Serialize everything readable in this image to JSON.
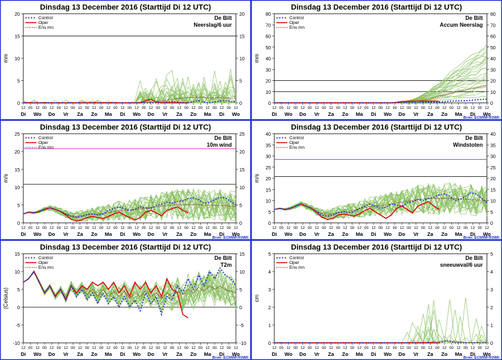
{
  "chart_data": [
    {
      "type": "line",
      "title": "Dinsdag 13 December 2016    (Starttijd Di 12 UTC)",
      "station": "De Bilt",
      "variable": "Neerslag/6 uur",
      "ylabel": "mm",
      "ylim": [
        0,
        20
      ],
      "yticks": [
        0,
        5,
        10,
        15,
        20
      ],
      "ylim_right": [
        0,
        20
      ],
      "yticks_right": [
        0,
        5,
        10,
        15,
        20
      ],
      "hlines": [
        {
          "value": 15,
          "color": "#000000"
        }
      ],
      "source": "",
      "legend": [
        "Control",
        "Oper",
        "Ens mn"
      ],
      "series": [
        {
          "name": "Control",
          "values": [
            0,
            0,
            0,
            0,
            0,
            0,
            0,
            0,
            0,
            0,
            0,
            0,
            0,
            0,
            0,
            0,
            0,
            0,
            0,
            0,
            0,
            0,
            0,
            0,
            0,
            0,
            0,
            0.2,
            0.3,
            0.2,
            0,
            0,
            0.3,
            0.5,
            0.2,
            0,
            0.2,
            0.4,
            0.5,
            0.3,
            0.2
          ]
        },
        {
          "name": "Oper",
          "values": [
            0,
            0,
            0,
            0,
            0,
            0,
            0,
            0,
            0,
            0,
            0,
            0,
            0,
            0,
            0,
            0,
            0,
            0,
            0,
            0,
            0,
            0,
            0,
            0.5,
            0.8,
            0.2,
            0,
            0,
            0,
            0,
            0,
            0
          ]
        },
        {
          "name": "Ens mn",
          "values": [
            0,
            0,
            0,
            0,
            0,
            0,
            0,
            0,
            0,
            0,
            0,
            0,
            0,
            0,
            0,
            0,
            0,
            0,
            0,
            0,
            0,
            0,
            0,
            0.1,
            0.2,
            0.3,
            0.4,
            0.6,
            0.8,
            1,
            1.1,
            1.2,
            1.2,
            1.3,
            1.2,
            1.1,
            1.1,
            1.2,
            1.1,
            1,
            1
          ]
        }
      ]
    },
    {
      "type": "line",
      "title": "Dinsdag 13 December 2016    (Starttijd Di 12 UTC)",
      "station": "De Bilt",
      "variable": "Accum Neerslag",
      "ylabel": "mm",
      "ylim": [
        0,
        80
      ],
      "yticks": [
        0,
        10,
        20,
        30,
        40,
        50,
        60,
        70,
        80
      ],
      "ylim_right": [
        0,
        80
      ],
      "yticks_right": [
        0,
        10,
        20,
        30,
        40,
        50,
        60,
        70,
        80
      ],
      "hlines": [
        {
          "value": 10,
          "color": "#000000"
        },
        {
          "value": 20,
          "color": "#000000"
        }
      ],
      "source": "Bron: ECMWF/KNMI",
      "legend": [
        "Control",
        "Oper",
        "Ens mn"
      ],
      "series": [
        {
          "name": "Control",
          "values": [
            0,
            0,
            0,
            0,
            0,
            0,
            0,
            0,
            0,
            0,
            0,
            0,
            0,
            0,
            0,
            0,
            0,
            0,
            0,
            0,
            0,
            0,
            0,
            0,
            0,
            0,
            0,
            0.2,
            0.5,
            0.7,
            0.7,
            0.7,
            1,
            1.5,
            1.7,
            1.7,
            1.9,
            2.3,
            2.8,
            3.1,
            3.3
          ]
        },
        {
          "name": "Oper",
          "values": [
            0,
            0,
            0,
            0,
            0,
            0,
            0,
            0,
            0,
            0,
            0,
            0,
            0,
            0,
            0,
            0,
            0,
            0,
            0,
            0,
            0,
            0,
            0,
            0.5,
            1.3,
            1.5,
            1.5,
            1.5,
            1.5,
            1.5,
            1.5,
            1.5
          ]
        },
        {
          "name": "Ens mn",
          "values": [
            0,
            0,
            0,
            0,
            0,
            0,
            0,
            0,
            0,
            0,
            0,
            0,
            0,
            0,
            0,
            0,
            0,
            0,
            0,
            0,
            0,
            0,
            0,
            0.1,
            0.3,
            0.6,
            1,
            1.6,
            2.4,
            3.4,
            4.5,
            5.7,
            6.9,
            8.2,
            9.4,
            10.5,
            11.6,
            12.8,
            13.9,
            14.9,
            15.9
          ]
        }
      ]
    },
    {
      "type": "line",
      "title": "Dinsdag 13 December 2016    (Starttijd Di 12 UTC)",
      "station": "De Bilt",
      "variable": "10m wind",
      "ylabel": "m/s",
      "ylim": [
        0,
        25
      ],
      "yticks": [
        0,
        5,
        10,
        15,
        20,
        25
      ],
      "ylim_right": [
        0,
        25
      ],
      "yticks_right": [
        0,
        5,
        10,
        15,
        20,
        25
      ],
      "hlines": [
        {
          "value": 10.8,
          "color": "#000000"
        },
        {
          "value": 20.8,
          "color": "#cc00cc"
        }
      ],
      "source": "Bron: ECMWF/KNMI",
      "legend": [
        "Control",
        "Oper",
        "Ens mn"
      ],
      "series": [
        {
          "name": "Control",
          "values": [
            2.5,
            3,
            2.8,
            3.2,
            3.8,
            4.2,
            3.8,
            3.2,
            2.5,
            1.8,
            1.5,
            1.8,
            2.3,
            2.5,
            2.2,
            2.5,
            3.5,
            4,
            4.5,
            4,
            3.5,
            3.8,
            4.5,
            4.2,
            4,
            4.8,
            5.2,
            5.8,
            5.5,
            6,
            6.2,
            6.8,
            7,
            6.5,
            5.5,
            5.8,
            6.5,
            7.2,
            7,
            6,
            5
          ]
        },
        {
          "name": "Oper",
          "values": [
            2.5,
            3,
            2.8,
            3.2,
            3.8,
            4.2,
            3.8,
            3.2,
            2.2,
            1,
            0.5,
            0.8,
            1.5,
            1.8,
            1.5,
            1.2,
            1.8,
            2.5,
            3,
            2.2,
            1.5,
            0.8,
            1.5,
            3,
            3.5,
            2.8,
            2,
            3.5,
            4,
            4.5,
            3.5,
            2.8
          ]
        },
        {
          "name": "Ens mn",
          "values": [
            2.5,
            3,
            2.8,
            3.2,
            3.8,
            4.2,
            3.8,
            3.2,
            2.5,
            2,
            1.8,
            2,
            2.2,
            2.4,
            2.5,
            2.6,
            2.9,
            3.2,
            3.4,
            3.5,
            3.6,
            3.7,
            3.9,
            4.1,
            4.3,
            4.5,
            4.7,
            4.9,
            5,
            5.1,
            5.1,
            5.1,
            5.1,
            5.1,
            5,
            5,
            4.9,
            4.9,
            4.8,
            4.7,
            4.6
          ]
        }
      ]
    },
    {
      "type": "line",
      "title": "Dinsdag 13 December 2016    (Starttijd Di 12 UTC)",
      "station": "De Bilt",
      "variable": "Windstoten",
      "ylabel": "m/s",
      "ylim": [
        0,
        40
      ],
      "yticks": [
        0,
        5,
        10,
        15,
        20,
        25,
        30,
        35,
        40
      ],
      "ylim_right": [
        0,
        40
      ],
      "yticks_right": [
        0,
        5,
        10,
        15,
        20,
        25,
        30,
        35,
        40
      ],
      "hlines": [
        {
          "value": 20.8,
          "color": "#000000"
        },
        {
          "value": 28.5,
          "color": "#cc00cc"
        }
      ],
      "source": "Bron: ECMWF/KNMI",
      "legend": [
        "Control",
        "Oper",
        "Ens mn"
      ],
      "series": [
        {
          "name": "Control",
          "values": [
            6,
            6.5,
            6,
            6.5,
            7.5,
            8.5,
            7.5,
            6.5,
            5,
            3.5,
            3,
            3.5,
            4.5,
            5,
            4.5,
            5,
            6.5,
            7.5,
            8.5,
            7.5,
            6.5,
            7,
            8.5,
            8,
            7.5,
            9,
            9.5,
            10.5,
            10,
            11,
            11.5,
            12.5,
            13,
            12,
            10,
            10.5,
            12,
            13.5,
            13,
            11,
            9
          ]
        },
        {
          "name": "Oper",
          "values": [
            6,
            6.5,
            6,
            6.5,
            7.5,
            8.5,
            7.5,
            6.5,
            4.5,
            2.5,
            1.5,
            2,
            3.5,
            4,
            3.5,
            3,
            4,
            5.5,
            6.5,
            5,
            3.5,
            2,
            3.5,
            6.5,
            7.5,
            6,
            4.5,
            7.5,
            8.5,
            9.5,
            7.5,
            6
          ]
        },
        {
          "name": "Ens mn",
          "values": [
            6,
            6.5,
            6,
            6.5,
            7.5,
            8.5,
            7.5,
            6.5,
            5,
            4.2,
            3.8,
            4.2,
            4.6,
            5,
            5.3,
            5.6,
            6.2,
            6.8,
            7.3,
            7.6,
            7.8,
            8.1,
            8.5,
            8.9,
            9.3,
            9.7,
            10.1,
            10.5,
            10.7,
            10.9,
            11,
            11,
            11,
            11,
            10.9,
            10.8,
            10.6,
            10.5,
            10.3,
            10.1,
            9.9
          ]
        }
      ]
    },
    {
      "type": "line",
      "title": "Dinsdag 13 December 2016    (Starttijd Di 12 UTC)",
      "station": "De Bilt",
      "variable": "T2m",
      "ylabel": "(Celsius)",
      "ylim": [
        -10,
        15
      ],
      "yticks": [
        -10,
        -5,
        0,
        5,
        10,
        15
      ],
      "ylim_right": [
        -10,
        15
      ],
      "yticks_right": [
        -10,
        -5,
        0,
        5,
        10,
        15
      ],
      "hlines": [
        {
          "value": 0,
          "color": "#000000"
        }
      ],
      "source": "Bron: ECMWF/KNMI",
      "legend": [
        "Control",
        "Oper",
        "Ens mn"
      ],
      "series": [
        {
          "name": "Control",
          "values": [
            7,
            8,
            10,
            7,
            4,
            6,
            3,
            5,
            2,
            6,
            3,
            5,
            2,
            4,
            1,
            4,
            1,
            3,
            0,
            3,
            0,
            2,
            -1,
            4,
            1,
            3,
            -2,
            3,
            2,
            6,
            4,
            8,
            5,
            9,
            6,
            10,
            8,
            11,
            9,
            8,
            6
          ]
        },
        {
          "name": "Oper",
          "values": [
            7,
            8,
            10,
            7,
            4,
            6,
            3,
            5,
            2,
            6,
            4,
            6,
            5,
            7,
            6,
            7,
            5,
            7,
            4,
            6,
            3,
            7,
            5,
            7,
            4,
            6,
            3,
            8,
            5,
            4,
            -2,
            -3
          ]
        },
        {
          "name": "Ens mn",
          "values": [
            7,
            8,
            10,
            7,
            4,
            6,
            3,
            5,
            2.5,
            6,
            4,
            5.5,
            3.5,
            5,
            3,
            5,
            3,
            4.5,
            3,
            4.5,
            2.5,
            4,
            3,
            4.5,
            3,
            4,
            2.5,
            4,
            3,
            4.5,
            3.5,
            5,
            4,
            5.5,
            4.5,
            6,
            5,
            6,
            5,
            4.5,
            4
          ]
        }
      ]
    },
    {
      "type": "line",
      "title": "Dinsdag 13 December 2016    (Starttijd Di 12 UTC)",
      "station": "De Bilt",
      "variable": "sneeuwval/6 uur",
      "ylabel": "cm",
      "ylim": [
        0,
        5
      ],
      "yticks": [
        0,
        1,
        2,
        3,
        4,
        5
      ],
      "ylim_right": [
        0,
        5
      ],
      "yticks_right": [
        0,
        1,
        2,
        3,
        4,
        5
      ],
      "hlines": [],
      "source": "Bron: ECMWF/KNMI",
      "legend": [
        "Control",
        "Oper",
        "Ens mn"
      ],
      "series": [
        {
          "name": "Control",
          "values": [
            0,
            0,
            0,
            0,
            0,
            0,
            0,
            0,
            0,
            0,
            0,
            0,
            0,
            0,
            0,
            0,
            0,
            0,
            0,
            0,
            0,
            0,
            0,
            0,
            0,
            0,
            0,
            0,
            0,
            0,
            0,
            0,
            0.1,
            0.1,
            0,
            0,
            0,
            0,
            0,
            0,
            0
          ]
        },
        {
          "name": "Oper",
          "values": [
            0,
            0,
            0,
            0,
            0,
            0,
            0,
            0,
            0,
            0,
            0,
            0,
            0,
            0,
            0,
            0,
            0,
            0,
            0,
            0,
            0,
            0,
            0,
            0,
            0,
            0,
            0,
            0,
            0,
            0,
            0,
            0
          ]
        },
        {
          "name": "Ens mn",
          "values": [
            0,
            0,
            0,
            0,
            0,
            0,
            0,
            0,
            0,
            0,
            0,
            0,
            0,
            0,
            0,
            0,
            0,
            0,
            0,
            0,
            0,
            0,
            0,
            0,
            0,
            0,
            0,
            0,
            0.02,
            0.05,
            0.06,
            0.08,
            0.1,
            0.1,
            0.08,
            0.05,
            0.03,
            0.02,
            0.01,
            0,
            0
          ]
        }
      ]
    }
  ],
  "x_axis": {
    "hour_labels": [
      "12",
      "00",
      "12",
      "00",
      "12",
      "00",
      "12",
      "00",
      "12",
      "00",
      "12",
      "00",
      "12",
      "00",
      "12",
      "00",
      "12",
      "00",
      "12",
      "00",
      "12",
      "00",
      "12",
      "00",
      "12",
      "00",
      "12",
      "00",
      "12",
      "00",
      "12"
    ],
    "day_labels": [
      "Di",
      "Wo",
      "Do",
      "Vr",
      "Za",
      "Zo",
      "Ma",
      "Di",
      "Wo",
      "Do",
      "Vr",
      "Za",
      "Zo",
      "Ma",
      "Di",
      "Wo"
    ]
  },
  "colors": {
    "frame": "#2233cc",
    "control": "#2233cc",
    "oper": "#dd0000",
    "ensmean": "#8b1a1a",
    "members": "#88c060",
    "threshold": "#cc00cc"
  }
}
